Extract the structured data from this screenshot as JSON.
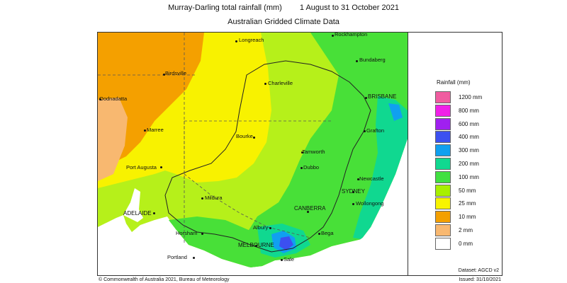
{
  "title": "Murray-Darling total rainfall (mm)",
  "date_range": "1 August to 31 October 2021",
  "subtitle": "Australian Gridded Climate Data",
  "legend": {
    "title": "Rainfall (mm)",
    "items": [
      {
        "label": "1200 mm",
        "color": "#f05ca0"
      },
      {
        "label": "800 mm",
        "color": "#f020e8"
      },
      {
        "label": "600 mm",
        "color": "#a020f0"
      },
      {
        "label": "400 mm",
        "color": "#3c50f0"
      },
      {
        "label": "300 mm",
        "color": "#10a0f0"
      },
      {
        "label": "200 mm",
        "color": "#10d890"
      },
      {
        "label": "100 mm",
        "color": "#40e040"
      },
      {
        "label": "50 mm",
        "color": "#a8f000"
      },
      {
        "label": "25 mm",
        "color": "#f8f400"
      },
      {
        "label": "10 mm",
        "color": "#f4a000"
      },
      {
        "label": "2 mm",
        "color": "#f8b870"
      },
      {
        "label": "0 mm",
        "color": "#ffffff"
      }
    ]
  },
  "places": [
    {
      "name": "Rockhampton"
    },
    {
      "name": "Longreach"
    },
    {
      "name": "Bundaberg"
    },
    {
      "name": "Birdsville"
    },
    {
      "name": "Charleville"
    },
    {
      "name": "BRISBANE"
    },
    {
      "name": "Oodnadatta"
    },
    {
      "name": "Grafton"
    },
    {
      "name": "Marree"
    },
    {
      "name": "Bourke"
    },
    {
      "name": "Tamworth"
    },
    {
      "name": "Port Augusta"
    },
    {
      "name": "Dubbo"
    },
    {
      "name": "Newcastle"
    },
    {
      "name": "SYDNEY"
    },
    {
      "name": "Mildura"
    },
    {
      "name": "Wollongong"
    },
    {
      "name": "CANBERRA"
    },
    {
      "name": "ADELAIDE"
    },
    {
      "name": "Albury"
    },
    {
      "name": "Horsham"
    },
    {
      "name": "Bega"
    },
    {
      "name": "MELBOURNE"
    },
    {
      "name": "Portland"
    },
    {
      "name": "Sale"
    }
  ],
  "dataset": "Dataset: AGCD v2",
  "copyright": "© Commonwealth of Australia 2021, Bureau of Meteorology",
  "issued": "Issued: 31/10/2021"
}
